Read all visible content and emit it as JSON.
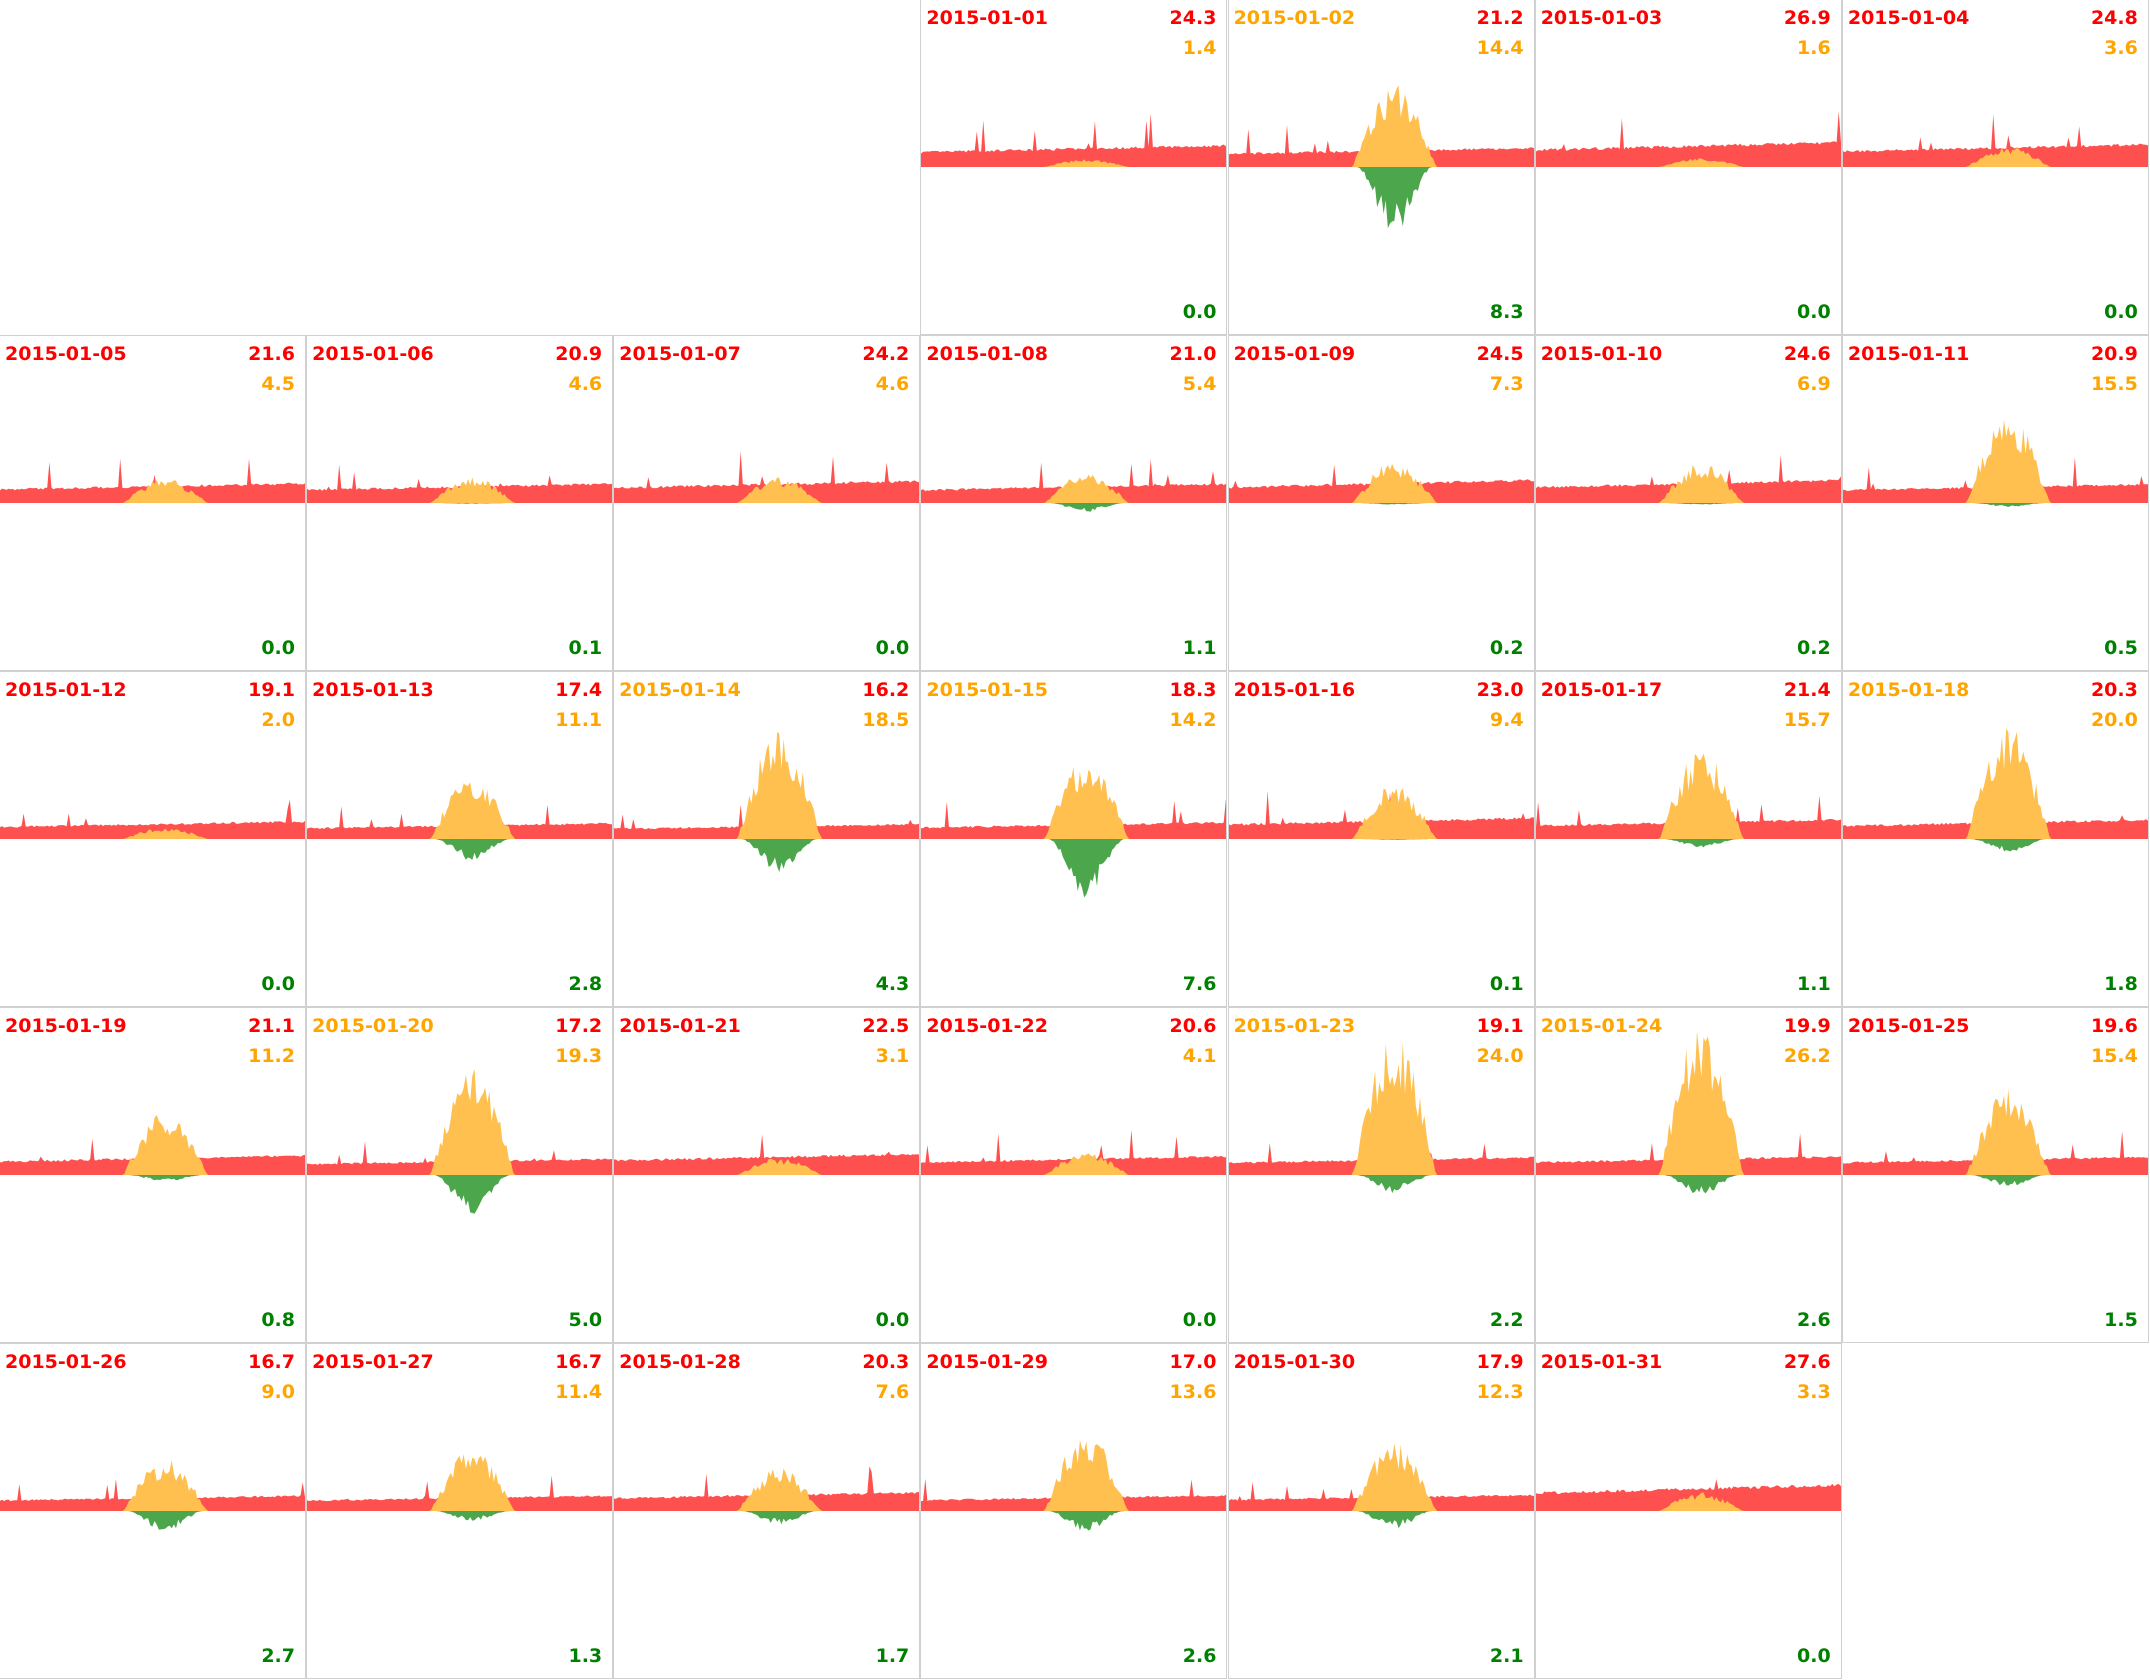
{
  "chart_data": {
    "type": "area",
    "title": "",
    "layout": "calendar month, weeks as rows, Monday first",
    "series_colors": {
      "consumption": "#ff5050",
      "solar": "#ffc050",
      "export": "#4ca64c"
    },
    "label_colors": {
      "consumption": "#ff0000",
      "solar": "#ffa500",
      "export": "#008000"
    },
    "days": [
      {
        "date": "2015-01-01",
        "consumption": "24.3",
        "solar": "1.4",
        "export": "0.0",
        "date_color": "#ff0000"
      },
      {
        "date": "2015-01-02",
        "consumption": "21.2",
        "solar": "14.4",
        "export": "8.3",
        "date_color": "#ffa500"
      },
      {
        "date": "2015-01-03",
        "consumption": "26.9",
        "solar": "1.6",
        "export": "0.0",
        "date_color": "#ff0000"
      },
      {
        "date": "2015-01-04",
        "consumption": "24.8",
        "solar": "3.6",
        "export": "0.0",
        "date_color": "#ff0000"
      },
      {
        "date": "2015-01-05",
        "consumption": "21.6",
        "solar": "4.5",
        "export": "0.0",
        "date_color": "#ff0000"
      },
      {
        "date": "2015-01-06",
        "consumption": "20.9",
        "solar": "4.6",
        "export": "0.1",
        "date_color": "#ff0000"
      },
      {
        "date": "2015-01-07",
        "consumption": "24.2",
        "solar": "4.6",
        "export": "0.0",
        "date_color": "#ff0000"
      },
      {
        "date": "2015-01-08",
        "consumption": "21.0",
        "solar": "5.4",
        "export": "1.1",
        "date_color": "#ff0000"
      },
      {
        "date": "2015-01-09",
        "consumption": "24.5",
        "solar": "7.3",
        "export": "0.2",
        "date_color": "#ff0000"
      },
      {
        "date": "2015-01-10",
        "consumption": "24.6",
        "solar": "6.9",
        "export": "0.2",
        "date_color": "#ff0000"
      },
      {
        "date": "2015-01-11",
        "consumption": "20.9",
        "solar": "15.5",
        "export": "0.5",
        "date_color": "#ff0000"
      },
      {
        "date": "2015-01-12",
        "consumption": "19.1",
        "solar": "2.0",
        "export": "0.0",
        "date_color": "#ff0000"
      },
      {
        "date": "2015-01-13",
        "consumption": "17.4",
        "solar": "11.1",
        "export": "2.8",
        "date_color": "#ff0000"
      },
      {
        "date": "2015-01-14",
        "consumption": "16.2",
        "solar": "18.5",
        "export": "4.3",
        "date_color": "#ffa500"
      },
      {
        "date": "2015-01-15",
        "consumption": "18.3",
        "solar": "14.2",
        "export": "7.6",
        "date_color": "#ffa500"
      },
      {
        "date": "2015-01-16",
        "consumption": "23.0",
        "solar": "9.4",
        "export": "0.1",
        "date_color": "#ff0000"
      },
      {
        "date": "2015-01-17",
        "consumption": "21.4",
        "solar": "15.7",
        "export": "1.1",
        "date_color": "#ff0000"
      },
      {
        "date": "2015-01-18",
        "consumption": "20.3",
        "solar": "20.0",
        "export": "1.8",
        "date_color": "#ffa500"
      },
      {
        "date": "2015-01-19",
        "consumption": "21.1",
        "solar": "11.2",
        "export": "0.8",
        "date_color": "#ff0000"
      },
      {
        "date": "2015-01-20",
        "consumption": "17.2",
        "solar": "19.3",
        "export": "5.0",
        "date_color": "#ffa500"
      },
      {
        "date": "2015-01-21",
        "consumption": "22.5",
        "solar": "3.1",
        "export": "0.0",
        "date_color": "#ff0000"
      },
      {
        "date": "2015-01-22",
        "consumption": "20.6",
        "solar": "4.1",
        "export": "0.0",
        "date_color": "#ff0000"
      },
      {
        "date": "2015-01-23",
        "consumption": "19.1",
        "solar": "24.0",
        "export": "2.2",
        "date_color": "#ffa500"
      },
      {
        "date": "2015-01-24",
        "consumption": "19.9",
        "solar": "26.2",
        "export": "2.6",
        "date_color": "#ffa500"
      },
      {
        "date": "2015-01-25",
        "consumption": "19.6",
        "solar": "15.4",
        "export": "1.5",
        "date_color": "#ff0000"
      },
      {
        "date": "2015-01-26",
        "consumption": "16.7",
        "solar": "9.0",
        "export": "2.7",
        "date_color": "#ff0000"
      },
      {
        "date": "2015-01-27",
        "consumption": "16.7",
        "solar": "11.4",
        "export": "1.3",
        "date_color": "#ff0000"
      },
      {
        "date": "2015-01-28",
        "consumption": "20.3",
        "solar": "7.6",
        "export": "1.7",
        "date_color": "#ff0000"
      },
      {
        "date": "2015-01-29",
        "consumption": "17.0",
        "solar": "13.6",
        "export": "2.6",
        "date_color": "#ff0000"
      },
      {
        "date": "2015-01-30",
        "consumption": "17.9",
        "solar": "12.3",
        "export": "2.1",
        "date_color": "#ff0000"
      },
      {
        "date": "2015-01-31",
        "consumption": "27.6",
        "solar": "3.3",
        "export": "0.0",
        "date_color": "#ff0000"
      }
    ]
  }
}
